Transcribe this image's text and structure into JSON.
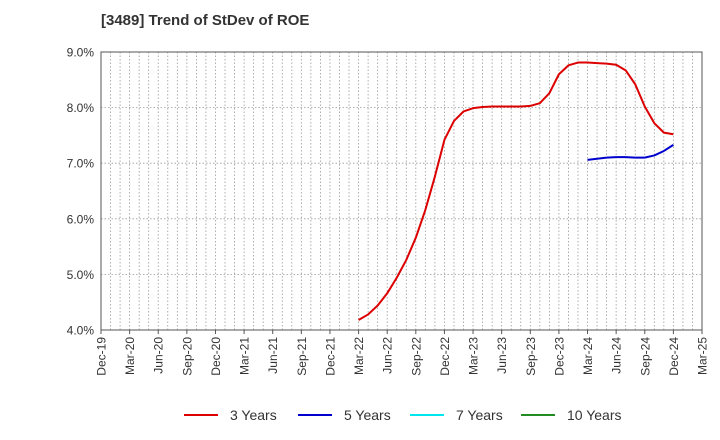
{
  "chart_data": {
    "type": "line",
    "title": "[3489]  Trend of StDev of ROE",
    "ylim": [
      4.0,
      9.0
    ],
    "yticks": [
      "4.0%",
      "5.0%",
      "6.0%",
      "7.0%",
      "8.0%",
      "9.0%"
    ],
    "xticks": [
      "Dec-19",
      "Mar-20",
      "Jun-20",
      "Sep-20",
      "Dec-20",
      "Mar-21",
      "Jun-21",
      "Sep-21",
      "Dec-21",
      "Mar-22",
      "Jun-22",
      "Sep-22",
      "Dec-22",
      "Mar-23",
      "Jun-23",
      "Sep-23",
      "Dec-23",
      "Mar-24",
      "Jun-24",
      "Sep-24",
      "Dec-24",
      "Mar-25"
    ],
    "grid": true,
    "legend_position": "bottom",
    "series": [
      {
        "name": "3 Years",
        "color": "#dd0000",
        "x": [
          "Mar-22",
          "Apr-22",
          "May-22",
          "Jun-22",
          "Jul-22",
          "Aug-22",
          "Sep-22",
          "Oct-22",
          "Nov-22",
          "Dec-22",
          "Jan-23",
          "Feb-23",
          "Mar-23",
          "Apr-23",
          "May-23",
          "Jun-23",
          "Jul-23",
          "Aug-23",
          "Sep-23",
          "Oct-23",
          "Nov-23",
          "Dec-23",
          "Jan-24",
          "Feb-24",
          "Mar-24",
          "Apr-24",
          "May-24",
          "Jun-24",
          "Jul-24",
          "Aug-24",
          "Sep-24",
          "Oct-24",
          "Nov-24",
          "Dec-24"
        ],
        "values": [
          4.18,
          4.28,
          4.44,
          4.66,
          4.94,
          5.26,
          5.66,
          6.16,
          6.76,
          7.42,
          7.76,
          7.93,
          7.99,
          8.01,
          8.02,
          8.02,
          8.02,
          8.02,
          8.03,
          8.08,
          8.26,
          8.6,
          8.76,
          8.81,
          8.81,
          8.8,
          8.79,
          8.77,
          8.67,
          8.42,
          8.02,
          7.72,
          7.55,
          7.52
        ]
      },
      {
        "name": "5 Years",
        "color": "#0000cc",
        "x": [
          "Mar-24",
          "Apr-24",
          "May-24",
          "Jun-24",
          "Jul-24",
          "Aug-24",
          "Sep-24",
          "Oct-24",
          "Nov-24",
          "Dec-24"
        ],
        "values": [
          7.06,
          7.08,
          7.1,
          7.11,
          7.11,
          7.1,
          7.1,
          7.14,
          7.22,
          7.33
        ]
      },
      {
        "name": "7 Years",
        "color": "#00e5ee",
        "x": [],
        "values": []
      },
      {
        "name": "10 Years",
        "color": "#228b22",
        "x": [],
        "values": []
      }
    ]
  }
}
